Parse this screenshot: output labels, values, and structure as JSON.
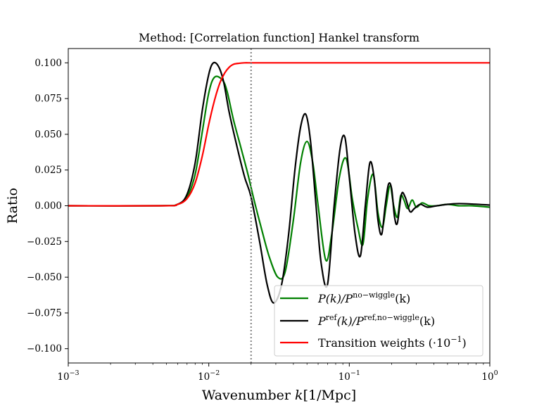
{
  "chart_data": {
    "type": "line",
    "title": "Method: [Correlation function] Hankel transform",
    "xlabel": {
      "prefix": "Wavenumber ",
      "var": "k",
      "unit": "[1/Mpc]"
    },
    "ylabel": "Ratio",
    "xscale": "log",
    "xlim": [
      0.001,
      1.0
    ],
    "ylim": [
      -0.11,
      0.11
    ],
    "grid": false,
    "x_ticks": [
      {
        "value": 0.001,
        "base": "10",
        "exp": "−3"
      },
      {
        "value": 0.01,
        "base": "10",
        "exp": "−2"
      },
      {
        "value": 0.1,
        "base": "10",
        "exp": "−1"
      },
      {
        "value": 1.0,
        "base": "10",
        "exp": "0"
      }
    ],
    "y_ticks": [
      {
        "value": 0.1,
        "label": "0.100"
      },
      {
        "value": 0.075,
        "label": "0.075"
      },
      {
        "value": 0.05,
        "label": "0.050"
      },
      {
        "value": 0.025,
        "label": "0.025"
      },
      {
        "value": 0.0,
        "label": "0.000"
      },
      {
        "value": -0.025,
        "label": "−0.025"
      },
      {
        "value": -0.05,
        "label": "−0.050"
      },
      {
        "value": -0.075,
        "label": "−0.075"
      },
      {
        "value": -0.1,
        "label": "−0.100"
      }
    ],
    "vline": {
      "x": 0.02,
      "style": "dotted",
      "color": "#808080"
    },
    "legend_position": "lower-right",
    "series": [
      {
        "legend": {
          "main": "P(k)/P",
          "sup": "no−wiggle",
          "tail": "(k)"
        },
        "color": "#008000",
        "x": [
          0.001,
          0.0045,
          0.006,
          0.007,
          0.008,
          0.009,
          0.01,
          0.011,
          0.0125,
          0.0135,
          0.015,
          0.017,
          0.019,
          0.021,
          0.024,
          0.027,
          0.031,
          0.035,
          0.04,
          0.045,
          0.05,
          0.055,
          0.06,
          0.068,
          0.075,
          0.085,
          0.095,
          0.105,
          0.115,
          0.125,
          0.135,
          0.148,
          0.16,
          0.172,
          0.183,
          0.195,
          0.207,
          0.22,
          0.232,
          0.245,
          0.26,
          0.28,
          0.3,
          0.33,
          0.37,
          0.42,
          0.5,
          0.6,
          0.75,
          1.0
        ],
        "y": [
          0.0,
          0.0,
          0.001,
          0.006,
          0.022,
          0.052,
          0.079,
          0.09,
          0.088,
          0.08,
          0.06,
          0.04,
          0.022,
          0.004,
          -0.018,
          -0.036,
          -0.05,
          -0.046,
          -0.01,
          0.03,
          0.045,
          0.03,
          0.0,
          -0.038,
          -0.02,
          0.02,
          0.033,
          0.005,
          -0.015,
          -0.027,
          0.005,
          0.022,
          -0.005,
          -0.015,
          0.0,
          0.014,
          0.0,
          -0.008,
          0.007,
          0.004,
          -0.002,
          0.004,
          -0.001,
          0.002,
          0.0,
          0.0,
          0.001,
          0.0,
          0.0,
          -0.001
        ]
      },
      {
        "legend": {
          "main": "P",
          "sup": "ref",
          "mid": "(k)/P",
          "sup2": "ref,no−wiggle",
          "tail": "(k)"
        },
        "color": "#000000",
        "x": [
          0.001,
          0.0045,
          0.006,
          0.007,
          0.008,
          0.009,
          0.01,
          0.0108,
          0.0118,
          0.0128,
          0.014,
          0.016,
          0.018,
          0.02,
          0.023,
          0.026,
          0.029,
          0.033,
          0.037,
          0.041,
          0.045,
          0.049,
          0.053,
          0.058,
          0.063,
          0.07,
          0.078,
          0.086,
          0.093,
          0.1,
          0.11,
          0.12,
          0.13,
          0.14,
          0.15,
          0.16,
          0.17,
          0.18,
          0.19,
          0.2,
          0.21,
          0.22,
          0.235,
          0.25,
          0.27,
          0.29,
          0.32,
          0.36,
          0.42,
          0.5,
          0.6,
          0.75,
          1.0
        ],
        "y": [
          0.0,
          0.0,
          0.001,
          0.008,
          0.03,
          0.067,
          0.092,
          0.1,
          0.097,
          0.086,
          0.065,
          0.04,
          0.02,
          0.006,
          -0.025,
          -0.055,
          -0.068,
          -0.055,
          -0.02,
          0.025,
          0.055,
          0.064,
          0.045,
          0.0,
          -0.04,
          -0.055,
          0.0,
          0.04,
          0.048,
          0.02,
          -0.02,
          -0.035,
          0.0,
          0.03,
          0.02,
          -0.01,
          -0.02,
          0.0,
          0.015,
          0.012,
          -0.008,
          -0.012,
          0.008,
          0.006,
          -0.004,
          -0.002,
          0.001,
          -0.001,
          0.0,
          0.001,
          0.0015,
          0.0012,
          0.0005
        ]
      },
      {
        "legend": {
          "main": "Transition weights (·10",
          "sup": "−1",
          "tail": ")"
        },
        "color": "#ff0000",
        "x": [
          0.001,
          0.0048,
          0.006,
          0.007,
          0.008,
          0.009,
          0.01,
          0.011,
          0.012,
          0.013,
          0.014,
          0.015,
          0.0165,
          0.018,
          0.02,
          0.025,
          0.04,
          0.1,
          1.0
        ],
        "y": [
          0.0,
          0.0,
          0.001,
          0.005,
          0.016,
          0.035,
          0.057,
          0.074,
          0.086,
          0.093,
          0.097,
          0.099,
          0.0997,
          0.1,
          0.1,
          0.1,
          0.1,
          0.1,
          0.1
        ]
      }
    ]
  }
}
